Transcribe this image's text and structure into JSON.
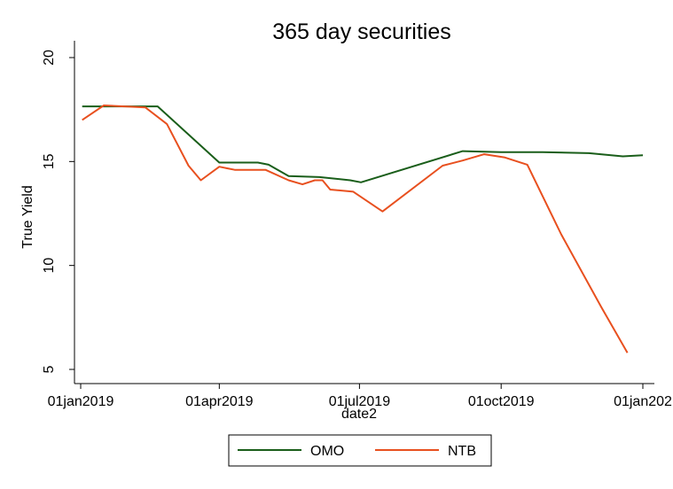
{
  "chart_data": {
    "type": "line",
    "title": "365 day securities",
    "xlabel": "date2",
    "ylabel": "True Yield",
    "xlim": [
      0,
      365
    ],
    "ylim": [
      4.5,
      21
    ],
    "y_ticks": [
      {
        "value": 5,
        "label": "5"
      },
      {
        "value": 10,
        "label": "10"
      },
      {
        "value": 15,
        "label": "15"
      },
      {
        "value": 20,
        "label": "20"
      }
    ],
    "x_ticks": [
      {
        "value": 0,
        "label": "01jan2019"
      },
      {
        "value": 90,
        "label": "01apr2019"
      },
      {
        "value": 181,
        "label": "01jul2019"
      },
      {
        "value": 273,
        "label": "01oct2019"
      },
      {
        "value": 365,
        "label": "01jan202"
      }
    ],
    "grid": false,
    "legend_position": "bottom",
    "series": [
      {
        "name": "OMO",
        "color": "#1a5e1a",
        "points": [
          [
            1,
            17.65
          ],
          [
            15,
            17.65
          ],
          [
            50,
            17.65
          ],
          [
            90,
            14.95
          ],
          [
            115,
            14.95
          ],
          [
            122,
            14.85
          ],
          [
            135,
            14.3
          ],
          [
            155,
            14.25
          ],
          [
            175,
            14.1
          ],
          [
            182,
            14.0
          ],
          [
            248,
            15.5
          ],
          [
            273,
            15.45
          ],
          [
            300,
            15.45
          ],
          [
            330,
            15.4
          ],
          [
            352,
            15.25
          ],
          [
            365,
            15.3
          ]
        ]
      },
      {
        "name": "NTB",
        "color": "#e8501f",
        "points": [
          [
            1,
            17.0
          ],
          [
            15,
            17.7
          ],
          [
            42,
            17.6
          ],
          [
            56,
            16.8
          ],
          [
            70,
            14.8
          ],
          [
            78,
            14.1
          ],
          [
            90,
            14.75
          ],
          [
            100,
            14.6
          ],
          [
            120,
            14.6
          ],
          [
            135,
            14.1
          ],
          [
            144,
            13.9
          ],
          [
            152,
            14.1
          ],
          [
            157,
            14.1
          ],
          [
            162,
            13.65
          ],
          [
            177,
            13.55
          ],
          [
            196,
            12.6
          ],
          [
            235,
            14.8
          ],
          [
            248,
            15.05
          ],
          [
            262,
            15.35
          ],
          [
            275,
            15.2
          ],
          [
            290,
            14.85
          ],
          [
            312,
            11.5
          ],
          [
            338,
            8.0
          ],
          [
            355,
            5.8
          ]
        ]
      }
    ]
  }
}
